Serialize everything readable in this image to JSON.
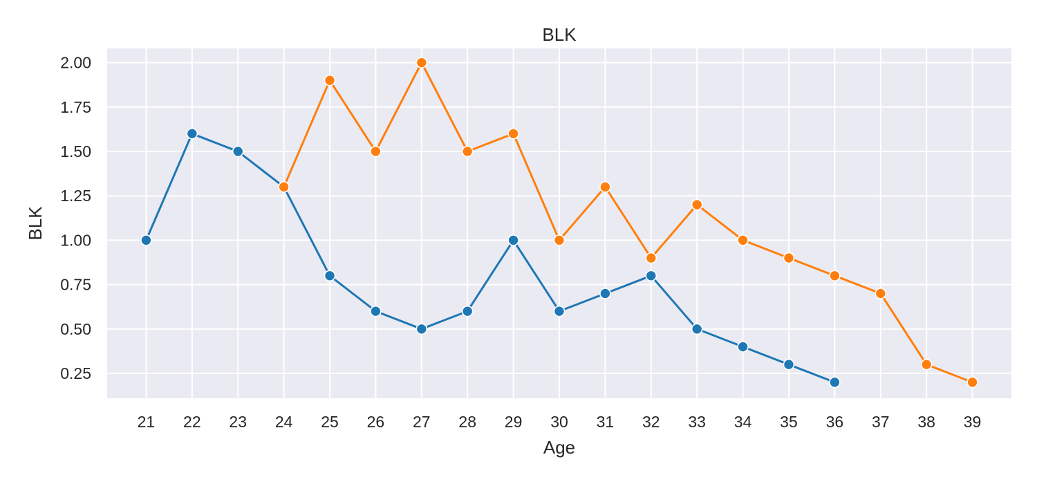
{
  "chart_data": {
    "type": "line",
    "title": "BLK",
    "xlabel": "Age",
    "ylabel": "BLK",
    "x": [
      21,
      22,
      23,
      24,
      25,
      26,
      27,
      28,
      29,
      30,
      31,
      32,
      33,
      34,
      35,
      36,
      37,
      38,
      39
    ],
    "xlim": [
      20.15,
      39.85
    ],
    "ylim": [
      0.11,
      2.08
    ],
    "yticks": [
      "0.25",
      "0.50",
      "0.75",
      "1.00",
      "1.25",
      "1.50",
      "1.75",
      "2.00"
    ],
    "grid": true,
    "series": [
      {
        "color": "#1f77b4",
        "points": [
          [
            21,
            1.0
          ],
          [
            22,
            1.6
          ],
          [
            23,
            1.5
          ],
          [
            24,
            1.3
          ],
          [
            25,
            0.8
          ],
          [
            26,
            0.6
          ],
          [
            27,
            0.5
          ],
          [
            28,
            0.6
          ],
          [
            29,
            1.0
          ],
          [
            30,
            0.6
          ],
          [
            31,
            0.7
          ],
          [
            32,
            0.8
          ],
          [
            33,
            0.5
          ],
          [
            34,
            0.4
          ],
          [
            35,
            0.3
          ],
          [
            36,
            0.2
          ]
        ]
      },
      {
        "color": "#ff7f0e",
        "points": [
          [
            24,
            1.3
          ],
          [
            25,
            1.9
          ],
          [
            26,
            1.5
          ],
          [
            27,
            2.0
          ],
          [
            28,
            1.5
          ],
          [
            29,
            1.6
          ],
          [
            30,
            1.0
          ],
          [
            31,
            1.3
          ],
          [
            32,
            0.9
          ],
          [
            33,
            1.2
          ],
          [
            34,
            1.0
          ],
          [
            35,
            0.9
          ],
          [
            36,
            0.8
          ],
          [
            37,
            0.7
          ],
          [
            38,
            0.3
          ],
          [
            39,
            0.2
          ]
        ]
      }
    ]
  }
}
